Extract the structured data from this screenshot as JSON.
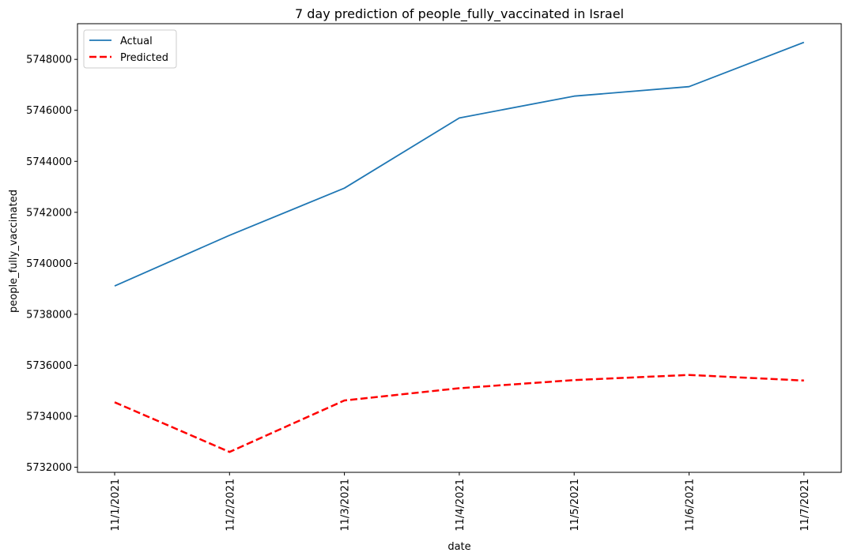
{
  "chart_data": {
    "type": "line",
    "title": "7 day prediction of people_fully_vaccinated in Israel",
    "xlabel": "date",
    "ylabel": "people_fully_vaccinated",
    "categories": [
      "11/1/2021",
      "11/2/2021",
      "11/3/2021",
      "11/4/2021",
      "11/5/2021",
      "11/6/2021",
      "11/7/2021"
    ],
    "yticks": [
      "5732000",
      "5734000",
      "5736000",
      "5738000",
      "5740000",
      "5742000",
      "5744000",
      "5746000",
      "5748000"
    ],
    "ylim": [
      5731800,
      5749400
    ],
    "grid": false,
    "legend_position": "upper-left",
    "series": [
      {
        "name": "Actual",
        "color": "#1f77b4",
        "style": "solid",
        "values": [
          5739110,
          5741100,
          5742950,
          5745700,
          5746560,
          5746930,
          5748670
        ]
      },
      {
        "name": "Predicted",
        "color": "#ff0000",
        "style": "dashed",
        "values": [
          5734550,
          5732600,
          5734620,
          5735100,
          5735420,
          5735620,
          5735400
        ]
      }
    ]
  }
}
